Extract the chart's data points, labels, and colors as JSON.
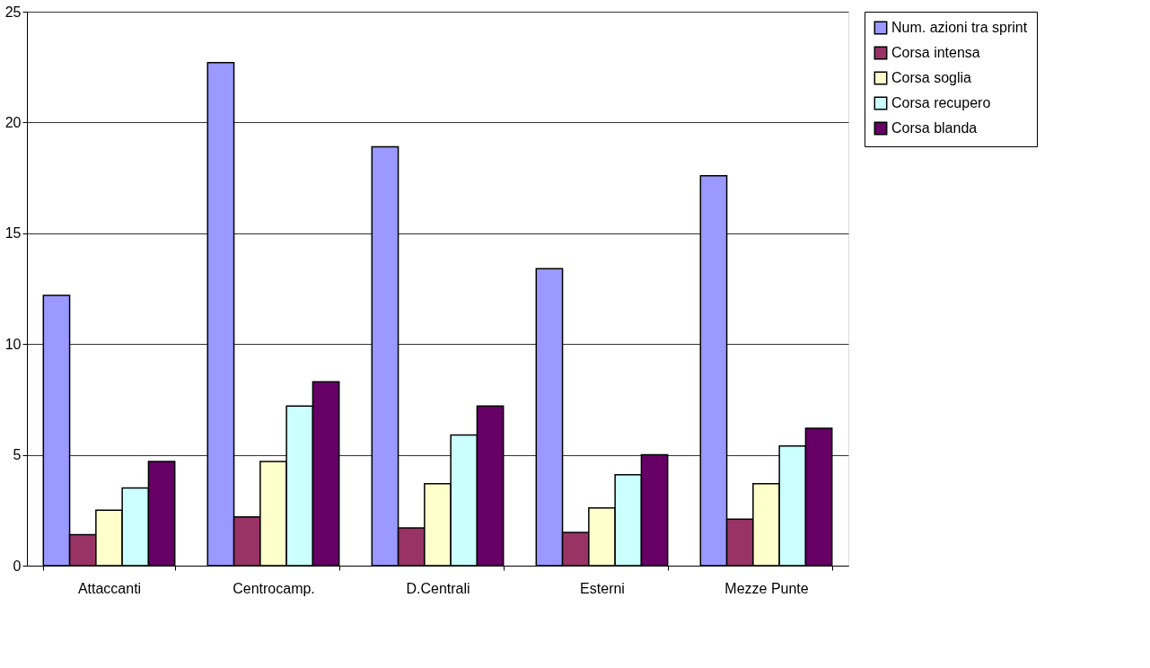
{
  "chart_data": {
    "type": "bar",
    "categories": [
      "Attaccanti",
      "Centrocamp.",
      "D.Centrali",
      "Esterni",
      "Mezze Punte"
    ],
    "series": [
      {
        "name": "Num. azioni tra sprint",
        "color": "#9999ff",
        "values": [
          12.2,
          22.7,
          18.9,
          13.4,
          17.6
        ]
      },
      {
        "name": "Corsa intensa",
        "color": "#993366",
        "values": [
          1.4,
          2.2,
          1.7,
          1.5,
          2.1
        ]
      },
      {
        "name": "Corsa soglia",
        "color": "#ffffcc",
        "values": [
          2.5,
          4.7,
          3.7,
          2.6,
          3.7
        ]
      },
      {
        "name": "Corsa recupero",
        "color": "#ccffff",
        "values": [
          3.5,
          7.2,
          5.9,
          4.1,
          5.4
        ]
      },
      {
        "name": "Corsa blanda",
        "color": "#660066",
        "values": [
          4.7,
          8.3,
          7.2,
          5.0,
          6.2
        ]
      }
    ],
    "ylim": [
      0,
      25
    ],
    "yticks": [
      0,
      5,
      10,
      15,
      20,
      25
    ],
    "grid": "y",
    "legend": "right"
  }
}
